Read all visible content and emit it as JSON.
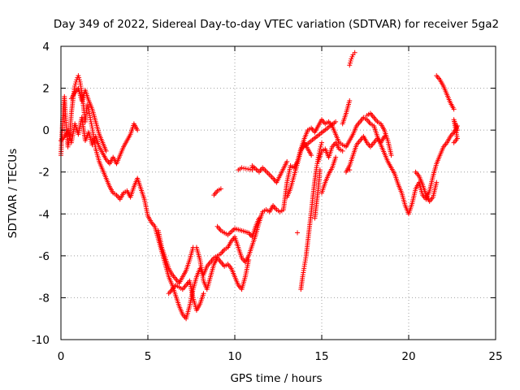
{
  "chart_data": {
    "type": "scatter",
    "title": "Day 349 of 2022, Sidereal Day-to-day VTEC variation (SDTVAR) for receiver 5ga2",
    "xlabel": "GPS time / hours",
    "ylabel": "SDTVAR / TECUs",
    "xlim": [
      0,
      25
    ],
    "ylim": [
      -10,
      4
    ],
    "xticks": [
      0,
      5,
      10,
      15,
      20,
      25
    ],
    "yticks": [
      -10,
      -8,
      -6,
      -4,
      -2,
      0,
      2,
      4
    ],
    "grid": true,
    "marker": "plus",
    "color": "#ff0000",
    "series": [
      {
        "points": [
          [
            0.0,
            -1.2
          ],
          [
            0.1,
            0.5
          ],
          [
            0.2,
            1.6
          ],
          [
            0.3,
            0.2
          ],
          [
            0.4,
            -0.8
          ],
          [
            0.5,
            -0.3
          ],
          [
            0.6,
            0.8
          ],
          [
            0.7,
            1.5
          ],
          [
            0.8,
            2.1
          ],
          [
            0.9,
            2.4
          ],
          [
            1.0,
            2.6
          ],
          [
            1.1,
            2.3
          ],
          [
            1.2,
            1.8
          ],
          [
            1.3,
            1.1
          ],
          [
            1.4,
            0.4
          ],
          [
            1.5,
            1.2
          ],
          [
            1.6,
            1.0
          ],
          [
            1.7,
            0.5
          ],
          [
            1.8,
            0.1
          ],
          [
            1.9,
            -0.4
          ],
          [
            2.0,
            -0.9
          ],
          [
            2.2,
            -1.5
          ],
          [
            2.4,
            -1.9
          ],
          [
            2.6,
            -2.3
          ],
          [
            2.8,
            -2.7
          ],
          [
            3.0,
            -3.0
          ],
          [
            3.2,
            -3.1
          ],
          [
            3.4,
            -3.3
          ],
          [
            3.6,
            -3.0
          ],
          [
            3.8,
            -2.9
          ],
          [
            4.0,
            -3.2
          ],
          [
            4.2,
            -2.7
          ],
          [
            4.4,
            -2.3
          ],
          [
            4.6,
            -2.8
          ],
          [
            4.8,
            -3.3
          ],
          [
            5.0,
            -4.1
          ],
          [
            5.2,
            -4.4
          ],
          [
            5.4,
            -4.6
          ],
          [
            5.6,
            -5.2
          ],
          [
            5.8,
            -5.8
          ],
          [
            6.0,
            -6.4
          ],
          [
            6.2,
            -7.0
          ],
          [
            6.4,
            -7.4
          ],
          [
            6.6,
            -7.9
          ],
          [
            6.8,
            -8.4
          ],
          [
            7.0,
            -8.8
          ],
          [
            7.2,
            -9.0
          ],
          [
            7.4,
            -8.4
          ],
          [
            7.6,
            -7.6
          ],
          [
            7.8,
            -7.0
          ],
          [
            8.0,
            -6.6
          ],
          [
            8.2,
            -6.9
          ],
          [
            8.4,
            -6.5
          ],
          [
            8.6,
            -6.3
          ],
          [
            8.8,
            -6.1
          ],
          [
            9.0,
            -6.0
          ],
          [
            9.2,
            -5.9
          ],
          [
            9.4,
            -5.7
          ],
          [
            9.6,
            -5.6
          ],
          [
            9.8,
            -5.3
          ],
          [
            10.0,
            -5.1
          ],
          [
            10.2,
            -5.6
          ],
          [
            10.4,
            -6.1
          ],
          [
            10.6,
            -6.3
          ],
          [
            10.8,
            -6.0
          ],
          [
            11.0,
            -5.5
          ],
          [
            11.2,
            -5.0
          ],
          [
            11.4,
            -4.4
          ],
          [
            11.6,
            -3.9
          ],
          [
            11.8,
            -3.8
          ],
          [
            12.0,
            -3.9
          ],
          [
            12.2,
            -3.6
          ],
          [
            12.4,
            -3.8
          ],
          [
            12.6,
            -3.9
          ],
          [
            12.8,
            -3.8
          ],
          [
            13.0,
            -2.5
          ],
          [
            13.2,
            -1.7
          ],
          [
            13.4,
            -1.8
          ],
          [
            13.6,
            -1.5
          ],
          [
            13.8,
            -0.9
          ],
          [
            14.0,
            -0.4
          ],
          [
            14.2,
            0.0
          ],
          [
            14.4,
            0.1
          ],
          [
            14.6,
            -0.1
          ],
          [
            14.8,
            0.2
          ],
          [
            15.0,
            0.5
          ],
          [
            15.2,
            0.3
          ],
          [
            15.4,
            0.4
          ],
          [
            15.6,
            0.2
          ],
          [
            15.8,
            -0.2
          ],
          [
            16.0,
            -0.6
          ],
          [
            16.2,
            -0.7
          ],
          [
            16.4,
            -0.8
          ],
          [
            16.6,
            -0.5
          ],
          [
            16.8,
            -0.2
          ],
          [
            17.0,
            0.2
          ],
          [
            17.2,
            0.4
          ],
          [
            17.4,
            0.6
          ],
          [
            17.6,
            0.5
          ],
          [
            17.8,
            0.3
          ],
          [
            18.0,
            0.2
          ],
          [
            18.2,
            -0.3
          ],
          [
            18.4,
            -0.7
          ],
          [
            18.6,
            -1.1
          ],
          [
            18.8,
            -1.5
          ],
          [
            19.0,
            -1.8
          ],
          [
            19.2,
            -2.1
          ],
          [
            19.4,
            -2.6
          ],
          [
            19.6,
            -3.0
          ],
          [
            19.8,
            -3.6
          ],
          [
            20.0,
            -4.0
          ],
          [
            20.2,
            -3.5
          ],
          [
            20.4,
            -2.8
          ],
          [
            20.6,
            -2.5
          ],
          [
            20.8,
            -3.1
          ],
          [
            21.0,
            -3.3
          ],
          [
            21.2,
            -2.9
          ],
          [
            21.4,
            -2.2
          ],
          [
            21.6,
            -1.6
          ],
          [
            21.8,
            -1.2
          ],
          [
            22.0,
            -0.8
          ],
          [
            22.2,
            -0.6
          ],
          [
            22.4,
            -0.3
          ],
          [
            22.6,
            -0.1
          ],
          [
            22.8,
            0.2
          ]
        ]
      },
      {
        "points": [
          [
            0.0,
            -0.5
          ],
          [
            0.2,
            -0.3
          ],
          [
            0.4,
            0.0
          ],
          [
            0.6,
            -0.6
          ],
          [
            0.8,
            0.3
          ],
          [
            1.0,
            -0.2
          ],
          [
            1.2,
            0.6
          ],
          [
            1.4,
            -0.5
          ],
          [
            1.6,
            -0.1
          ],
          [
            1.8,
            -0.7
          ],
          [
            2.0,
            -0.3
          ],
          [
            2.2,
            -0.8
          ],
          [
            2.4,
            -1.1
          ],
          [
            2.6,
            -1.4
          ],
          [
            2.8,
            -1.6
          ],
          [
            3.0,
            -1.3
          ],
          [
            3.2,
            -1.6
          ],
          [
            3.4,
            -1.2
          ],
          [
            3.6,
            -0.8
          ],
          [
            3.8,
            -0.5
          ],
          [
            4.0,
            -0.2
          ],
          [
            4.2,
            0.3
          ],
          [
            4.4,
            0.0
          ]
        ]
      },
      {
        "points": [
          [
            0.6,
            1.5
          ],
          [
            0.8,
            1.8
          ],
          [
            1.0,
            2.0
          ],
          [
            1.2,
            1.4
          ],
          [
            1.4,
            1.9
          ],
          [
            1.6,
            1.4
          ],
          [
            1.8,
            1.0
          ],
          [
            2.0,
            0.4
          ],
          [
            2.2,
            -0.2
          ],
          [
            2.4,
            -0.6
          ],
          [
            2.6,
            -1.0
          ]
        ]
      },
      {
        "points": [
          [
            5.6,
            -4.8
          ],
          [
            5.8,
            -5.6
          ],
          [
            6.0,
            -6.1
          ],
          [
            6.2,
            -6.6
          ],
          [
            6.4,
            -6.9
          ],
          [
            6.6,
            -7.1
          ],
          [
            6.8,
            -7.3
          ],
          [
            7.0,
            -7.0
          ],
          [
            7.2,
            -6.7
          ],
          [
            7.4,
            -6.2
          ],
          [
            7.6,
            -5.6
          ],
          [
            7.8,
            -5.6
          ],
          [
            8.0,
            -6.2
          ],
          [
            8.2,
            -7.2
          ],
          [
            8.4,
            -7.6
          ],
          [
            8.6,
            -7.0
          ],
          [
            8.8,
            -6.4
          ],
          [
            9.0,
            -6.1
          ],
          [
            9.2,
            -6.3
          ],
          [
            9.4,
            -6.5
          ],
          [
            9.6,
            -6.4
          ],
          [
            9.8,
            -6.6
          ],
          [
            10.0,
            -7.0
          ],
          [
            10.2,
            -7.4
          ],
          [
            10.4,
            -7.6
          ],
          [
            10.6,
            -7.0
          ],
          [
            10.8,
            -6.2
          ]
        ]
      },
      {
        "points": [
          [
            6.2,
            -7.8
          ],
          [
            6.6,
            -7.4
          ],
          [
            7.0,
            -7.6
          ],
          [
            7.4,
            -7.2
          ],
          [
            7.6,
            -8.0
          ],
          [
            7.8,
            -8.6
          ],
          [
            8.0,
            -8.3
          ],
          [
            8.2,
            -7.8
          ]
        ]
      },
      {
        "points": [
          [
            8.8,
            -3.1
          ],
          [
            9.0,
            -2.9
          ],
          [
            9.2,
            -2.8
          ]
        ]
      },
      {
        "points": [
          [
            9.0,
            -4.6
          ],
          [
            9.2,
            -4.8
          ],
          [
            9.6,
            -5.0
          ],
          [
            10.0,
            -4.7
          ],
          [
            10.4,
            -4.8
          ],
          [
            10.8,
            -4.9
          ],
          [
            11.0,
            -5.1
          ],
          [
            11.2,
            -4.6
          ],
          [
            11.4,
            -4.2
          ]
        ]
      },
      {
        "points": [
          [
            10.2,
            -1.9
          ],
          [
            10.4,
            -1.8
          ],
          [
            11.0,
            -1.9
          ],
          [
            11.0,
            -1.7
          ],
          [
            11.4,
            -2.0
          ],
          [
            11.6,
            -1.8
          ],
          [
            12.2,
            -2.3
          ],
          [
            12.4,
            -2.5
          ],
          [
            13.0,
            -1.5
          ]
        ]
      },
      {
        "points": [
          [
            13.8,
            -7.6
          ],
          [
            13.9,
            -7.0
          ],
          [
            14.0,
            -6.5
          ],
          [
            14.1,
            -6.0
          ],
          [
            14.2,
            -5.3
          ],
          [
            14.3,
            -4.6
          ],
          [
            14.4,
            -3.9
          ],
          [
            14.5,
            -3.1
          ],
          [
            14.6,
            -2.4
          ],
          [
            14.7,
            -1.8
          ],
          [
            14.8,
            -1.3
          ],
          [
            14.9,
            -0.9
          ],
          [
            15.0,
            -0.6
          ]
        ]
      },
      {
        "points": [
          [
            13.0,
            -3.2
          ],
          [
            13.2,
            -2.8
          ],
          [
            13.4,
            -2.2
          ],
          [
            13.6,
            -1.6
          ],
          [
            13.8,
            -1.0
          ],
          [
            14.0,
            -0.6
          ],
          [
            14.2,
            -0.9
          ],
          [
            14.4,
            -1.2
          ]
        ]
      },
      {
        "points": [
          [
            14.6,
            -4.2
          ],
          [
            14.8,
            -2.8
          ],
          [
            14.9,
            -1.9
          ]
        ]
      },
      {
        "points": [
          [
            14.8,
            -1.5
          ],
          [
            15.0,
            -1.0
          ],
          [
            15.2,
            -0.9
          ],
          [
            15.4,
            -1.3
          ],
          [
            15.6,
            -0.8
          ],
          [
            15.8,
            -0.6
          ],
          [
            16.0,
            -0.9
          ],
          [
            16.2,
            -1.0
          ]
        ]
      },
      {
        "points": [
          [
            15.0,
            -3.0
          ],
          [
            15.2,
            -2.5
          ],
          [
            15.4,
            -2.1
          ],
          [
            15.6,
            -1.8
          ],
          [
            15.8,
            -1.3
          ]
        ]
      },
      {
        "points": [
          [
            16.2,
            0.3
          ],
          [
            16.4,
            0.8
          ],
          [
            16.6,
            1.4
          ]
        ]
      },
      {
        "points": [
          [
            16.6,
            3.1
          ],
          [
            16.7,
            3.4
          ],
          [
            16.8,
            3.6
          ],
          [
            16.9,
            3.7
          ]
        ]
      },
      {
        "points": [
          [
            16.4,
            -2.0
          ],
          [
            16.6,
            -1.7
          ],
          [
            16.8,
            -1.2
          ],
          [
            17.0,
            -0.7
          ],
          [
            17.2,
            -0.5
          ],
          [
            17.4,
            -0.3
          ],
          [
            17.6,
            -0.6
          ],
          [
            17.8,
            -0.8
          ],
          [
            18.0,
            -0.6
          ],
          [
            18.2,
            -0.4
          ],
          [
            18.4,
            -0.6
          ],
          [
            18.6,
            -0.3
          ]
        ]
      },
      {
        "points": [
          [
            17.6,
            0.7
          ],
          [
            17.8,
            0.8
          ],
          [
            18.0,
            0.6
          ],
          [
            18.2,
            0.4
          ],
          [
            18.4,
            0.3
          ],
          [
            18.6,
            0.0
          ],
          [
            18.8,
            -0.5
          ],
          [
            19.0,
            -1.2
          ]
        ]
      },
      {
        "points": [
          [
            20.4,
            -2.0
          ],
          [
            20.6,
            -2.2
          ],
          [
            20.8,
            -2.6
          ],
          [
            21.0,
            -3.1
          ],
          [
            21.2,
            -3.4
          ],
          [
            21.4,
            -3.2
          ],
          [
            21.6,
            -2.5
          ]
        ]
      },
      {
        "points": [
          [
            21.6,
            2.6
          ],
          [
            21.8,
            2.4
          ],
          [
            22.0,
            2.1
          ],
          [
            22.2,
            1.7
          ],
          [
            22.4,
            1.3
          ],
          [
            22.6,
            1.0
          ]
        ]
      },
      {
        "points": [
          [
            22.6,
            -0.6
          ],
          [
            22.8,
            -0.4
          ],
          [
            22.6,
            0.5
          ],
          [
            22.8,
            0.0
          ]
        ]
      },
      {
        "points": [
          [
            13.6,
            -4.9
          ],
          [
            13.8,
            -0.9
          ],
          [
            15.8,
            0.4
          ],
          [
            16.6,
            -1.9
          ]
        ]
      }
    ]
  }
}
